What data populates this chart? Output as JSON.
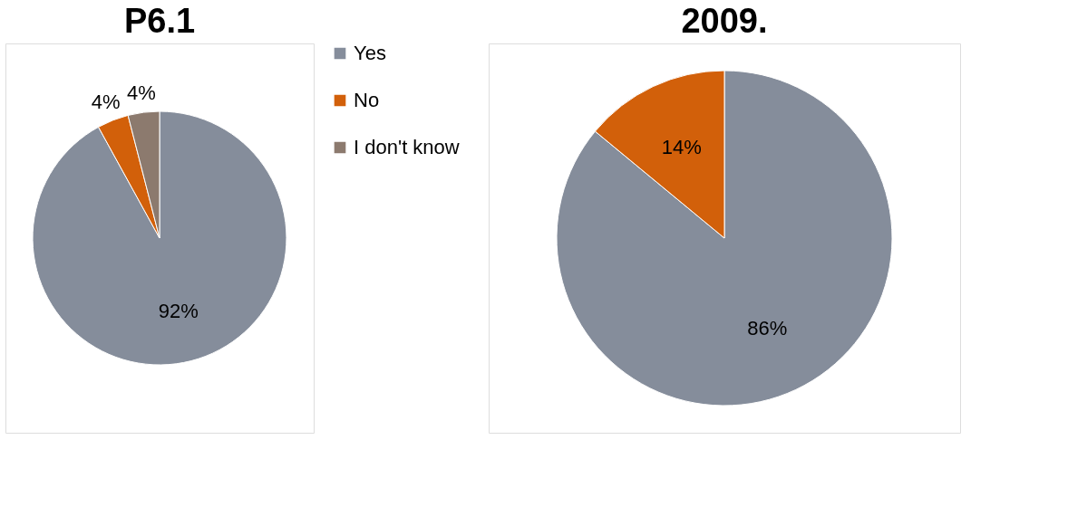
{
  "chart_data": [
    {
      "type": "pie",
      "title": "P6.1",
      "categories": [
        "Yes",
        "No",
        "I don't know"
      ],
      "values": [
        92,
        4,
        4
      ],
      "colors": [
        "#858d9b",
        "#d2600a",
        "#8c7a6e"
      ],
      "value_labels": [
        "92%",
        "4%",
        "4%"
      ],
      "legend": "right"
    },
    {
      "type": "pie",
      "title": "2009.",
      "categories": [
        null,
        null
      ],
      "values": [
        86,
        14
      ],
      "colors": [
        "#858d9b",
        "#d2600a"
      ],
      "value_labels": [
        "86%",
        "14%"
      ],
      "legend": false
    }
  ]
}
